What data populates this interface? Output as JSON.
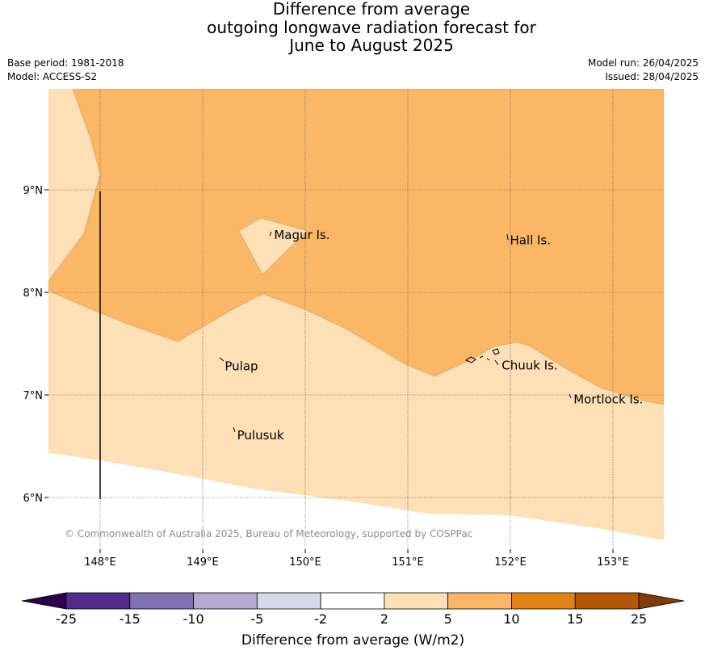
{
  "header": {
    "title_lines": [
      "Difference from average",
      "outgoing longwave radiation forecast for",
      "June to August 2025"
    ],
    "base_period": "Base period: 1981-2018",
    "model": "Model: ACCESS-S2",
    "model_run": "Model run: 26/04/2025",
    "issued": "Issued: 28/04/2025"
  },
  "map": {
    "lon_range": [
      147.5,
      153.5
    ],
    "lat_range": [
      5.5,
      10.0
    ],
    "lon_ticks": [
      "148°E",
      "149°E",
      "150°E",
      "151°E",
      "152°E",
      "153°E"
    ],
    "lat_ticks": [
      "9°N",
      "8°N",
      "7°N",
      "6°N"
    ],
    "grid": true,
    "places": [
      {
        "name": "Magur Is.",
        "lon": 149.68,
        "lat": 8.55
      },
      {
        "name": "Hall Is.",
        "lon": 151.98,
        "lat": 8.5
      },
      {
        "name": "Pulap",
        "lon": 149.2,
        "lat": 7.27
      },
      {
        "name": "Chuuk Is.",
        "lon": 151.9,
        "lat": 7.28
      },
      {
        "name": "Mortlock Is.",
        "lon": 152.6,
        "lat": 6.95
      },
      {
        "name": "Pulusuk",
        "lon": 149.32,
        "lat": 6.6
      }
    ],
    "copyright": "© Commonwealth of Australia 2025, Bureau of Meteorology, supported by COSPPac",
    "fill_colors": {
      "band_2_5": "#fde0b5",
      "band_5_10": "#fbb765"
    }
  },
  "colorbar": {
    "label": "Difference from average (W/m2)",
    "ticks": [
      "-25",
      "-15",
      "-10",
      "-5",
      "-2",
      "2",
      "5",
      "10",
      "15",
      "25"
    ],
    "colors": [
      "#562a8a",
      "#8271b0",
      "#b2aad2",
      "#d8d8ea",
      "#ffffff",
      "#fde0b5",
      "#fbb765",
      "#e08214",
      "#b35806"
    ],
    "under_color": "#2d004b",
    "over_color": "#7f3b08"
  }
}
